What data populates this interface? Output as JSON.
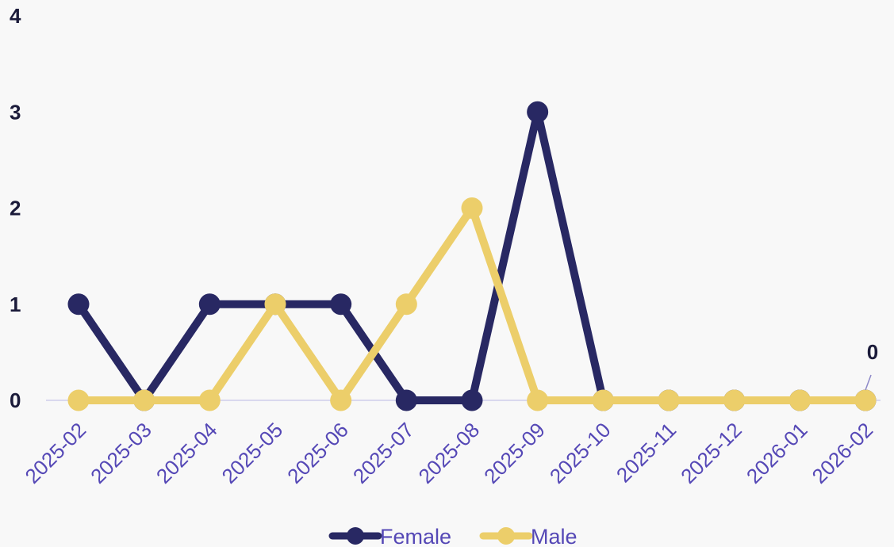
{
  "colors": {
    "background": "#f8f8f8",
    "tick_text": "#5548b6",
    "gridline": "#d9d8ee",
    "label_leader": "#8d88c8"
  },
  "chart_data": {
    "type": "line",
    "title": "",
    "xlabel": "",
    "ylabel": "",
    "categories": [
      "2025-02",
      "2025-03",
      "2025-04",
      "2025-05",
      "2025-06",
      "2025-07",
      "2025-08",
      "2025-09",
      "2025-10",
      "2025-11",
      "2025-12",
      "2026-01",
      "2026-02"
    ],
    "yticks": [
      "0",
      "1",
      "2",
      "3",
      "4"
    ],
    "ylim": [
      0,
      4
    ],
    "grid": false,
    "legend_position": "bottom-center",
    "series": [
      {
        "name": "Female",
        "color": "#282863",
        "values": [
          1,
          0,
          1,
          1,
          1,
          0,
          0,
          3,
          0,
          0,
          0,
          0,
          0
        ]
      },
      {
        "name": "Male",
        "color": "#ecce6a",
        "values": [
          0,
          0,
          0,
          1,
          0,
          1,
          2,
          0,
          0,
          0,
          0,
          0,
          0
        ]
      }
    ],
    "annotations": [
      {
        "text": "0",
        "category": "2026-02",
        "value": 0
      }
    ]
  }
}
